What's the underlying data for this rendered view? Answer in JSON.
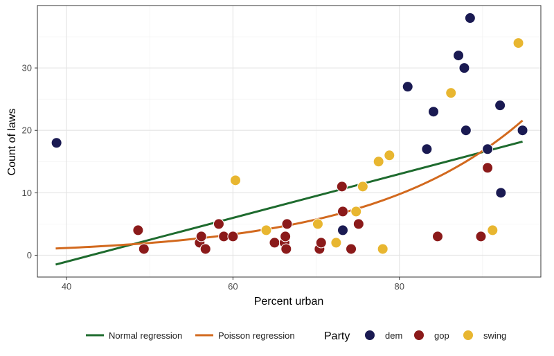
{
  "chart_data": {
    "type": "scatter",
    "title": "",
    "xlabel": "Percent urban",
    "ylabel": "Count of laws",
    "xlim": [
      36.5,
      97
    ],
    "ylim": [
      -3.5,
      40
    ],
    "x_ticks": [
      40,
      60,
      80
    ],
    "y_ticks": [
      0,
      10,
      20,
      30
    ],
    "grid": true,
    "legend_position": "bottom",
    "legend_title": "Party",
    "colors": {
      "dem": "#1a1a52",
      "gop": "#8b1a1a",
      "swing": "#e8b630",
      "normal_line": "#1e6b2e",
      "poisson_line": "#d2691e"
    },
    "lines": [
      {
        "name": "Normal regression",
        "x": [
          38.7,
          94.8
        ],
        "y": [
          -1.5,
          18.2
        ]
      },
      {
        "name": "Poisson regression",
        "intercept": -2.0,
        "slope": 0.0535,
        "x_range": [
          38.7,
          94.8
        ]
      }
    ],
    "series": [
      {
        "name": "dem",
        "points": [
          [
            38.8,
            18
          ],
          [
            73.2,
            4
          ],
          [
            81.0,
            27
          ],
          [
            83.3,
            17
          ],
          [
            84.1,
            23
          ],
          [
            87.1,
            32
          ],
          [
            87.8,
            30
          ],
          [
            88.0,
            20
          ],
          [
            88.5,
            38
          ],
          [
            90.6,
            17
          ],
          [
            92.1,
            24
          ],
          [
            92.2,
            10
          ],
          [
            94.8,
            20
          ]
        ]
      },
      {
        "name": "gop",
        "points": [
          [
            48.6,
            4
          ],
          [
            49.3,
            1
          ],
          [
            56.0,
            2
          ],
          [
            56.2,
            3
          ],
          [
            56.7,
            1
          ],
          [
            58.3,
            5
          ],
          [
            58.9,
            3
          ],
          [
            60.0,
            3
          ],
          [
            65.0,
            2
          ],
          [
            66.2,
            2
          ],
          [
            66.3,
            3
          ],
          [
            66.4,
            1
          ],
          [
            66.5,
            5
          ],
          [
            70.4,
            1
          ],
          [
            70.6,
            2
          ],
          [
            73.1,
            11
          ],
          [
            73.2,
            7
          ],
          [
            74.2,
            1
          ],
          [
            75.1,
            5
          ],
          [
            84.6,
            3
          ],
          [
            89.8,
            3
          ],
          [
            90.6,
            14
          ]
        ]
      },
      {
        "name": "swing",
        "points": [
          [
            60.3,
            12
          ],
          [
            64.0,
            4
          ],
          [
            70.2,
            5
          ],
          [
            72.4,
            2
          ],
          [
            74.8,
            7
          ],
          [
            75.6,
            11
          ],
          [
            77.5,
            15
          ],
          [
            78.0,
            1
          ],
          [
            78.8,
            16
          ],
          [
            86.2,
            26
          ],
          [
            91.2,
            4
          ],
          [
            94.3,
            34
          ]
        ]
      }
    ]
  }
}
